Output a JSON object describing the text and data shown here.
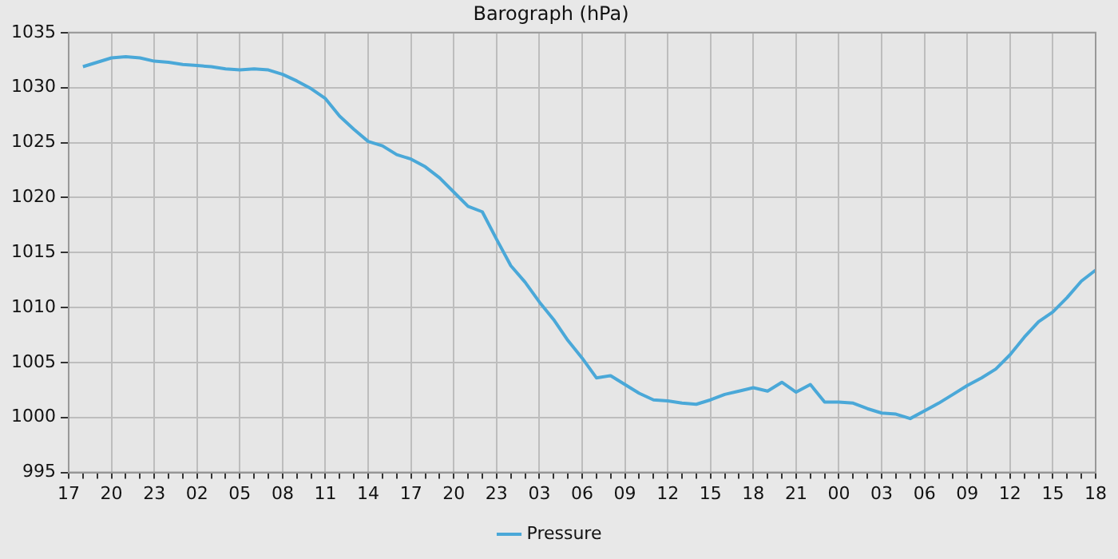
{
  "chart_data": {
    "type": "line",
    "title": "Barograph (hPa)",
    "categories": [
      "17",
      null,
      null,
      "20",
      null,
      null,
      "23",
      null,
      null,
      "02",
      null,
      null,
      "05",
      null,
      null,
      "08",
      null,
      null,
      "11",
      null,
      null,
      "14",
      null,
      null,
      "17",
      null,
      null,
      "20",
      null,
      null,
      "23",
      null,
      null,
      "03",
      null,
      null,
      "06",
      null,
      null,
      "09",
      null,
      null,
      "12",
      null,
      null,
      "15",
      null,
      null,
      "18",
      null,
      null,
      "21",
      null,
      null,
      "00",
      null,
      null,
      "03",
      null,
      null,
      "06",
      null,
      null,
      "09",
      null,
      null,
      "12",
      null,
      null,
      "15",
      null,
      null,
      "18"
    ],
    "series": [
      {
        "name": "Pressure",
        "color": "#4aa8d8",
        "values": [
          null,
          1031.9,
          1032.3,
          1032.7,
          1032.8,
          1032.7,
          1032.4,
          1032.3,
          1032.1,
          1032.0,
          1031.9,
          1031.7,
          1031.6,
          1031.7,
          1031.6,
          1031.2,
          1030.6,
          1029.9,
          1029.0,
          1027.4,
          1026.2,
          1025.1,
          1024.7,
          1023.9,
          1023.5,
          1022.8,
          1021.8,
          1020.5,
          1019.2,
          1018.7,
          1016.2,
          1013.8,
          1012.3,
          1010.5,
          1008.9,
          1007.0,
          1005.4,
          1003.6,
          1003.8,
          1003.0,
          1002.2,
          1001.6,
          1001.5,
          1001.3,
          1001.2,
          1001.6,
          1002.1,
          1002.4,
          1002.7,
          1002.4,
          1003.2,
          1002.3,
          1003.0,
          1001.4,
          1001.4,
          1001.3,
          1000.8,
          1000.4,
          1000.3,
          999.9,
          1000.6,
          1001.3,
          1002.1,
          1002.9,
          1003.6,
          1004.4,
          1005.7,
          1007.3,
          1008.7,
          1009.6,
          1010.9,
          1012.4,
          1013.4
        ]
      }
    ],
    "ylim": [
      995,
      1035
    ],
    "yticks": [
      995,
      1000,
      1005,
      1010,
      1015,
      1020,
      1025,
      1030,
      1035
    ],
    "grid": true,
    "legend": "bottom",
    "marker": "none",
    "line_style": "solid"
  }
}
